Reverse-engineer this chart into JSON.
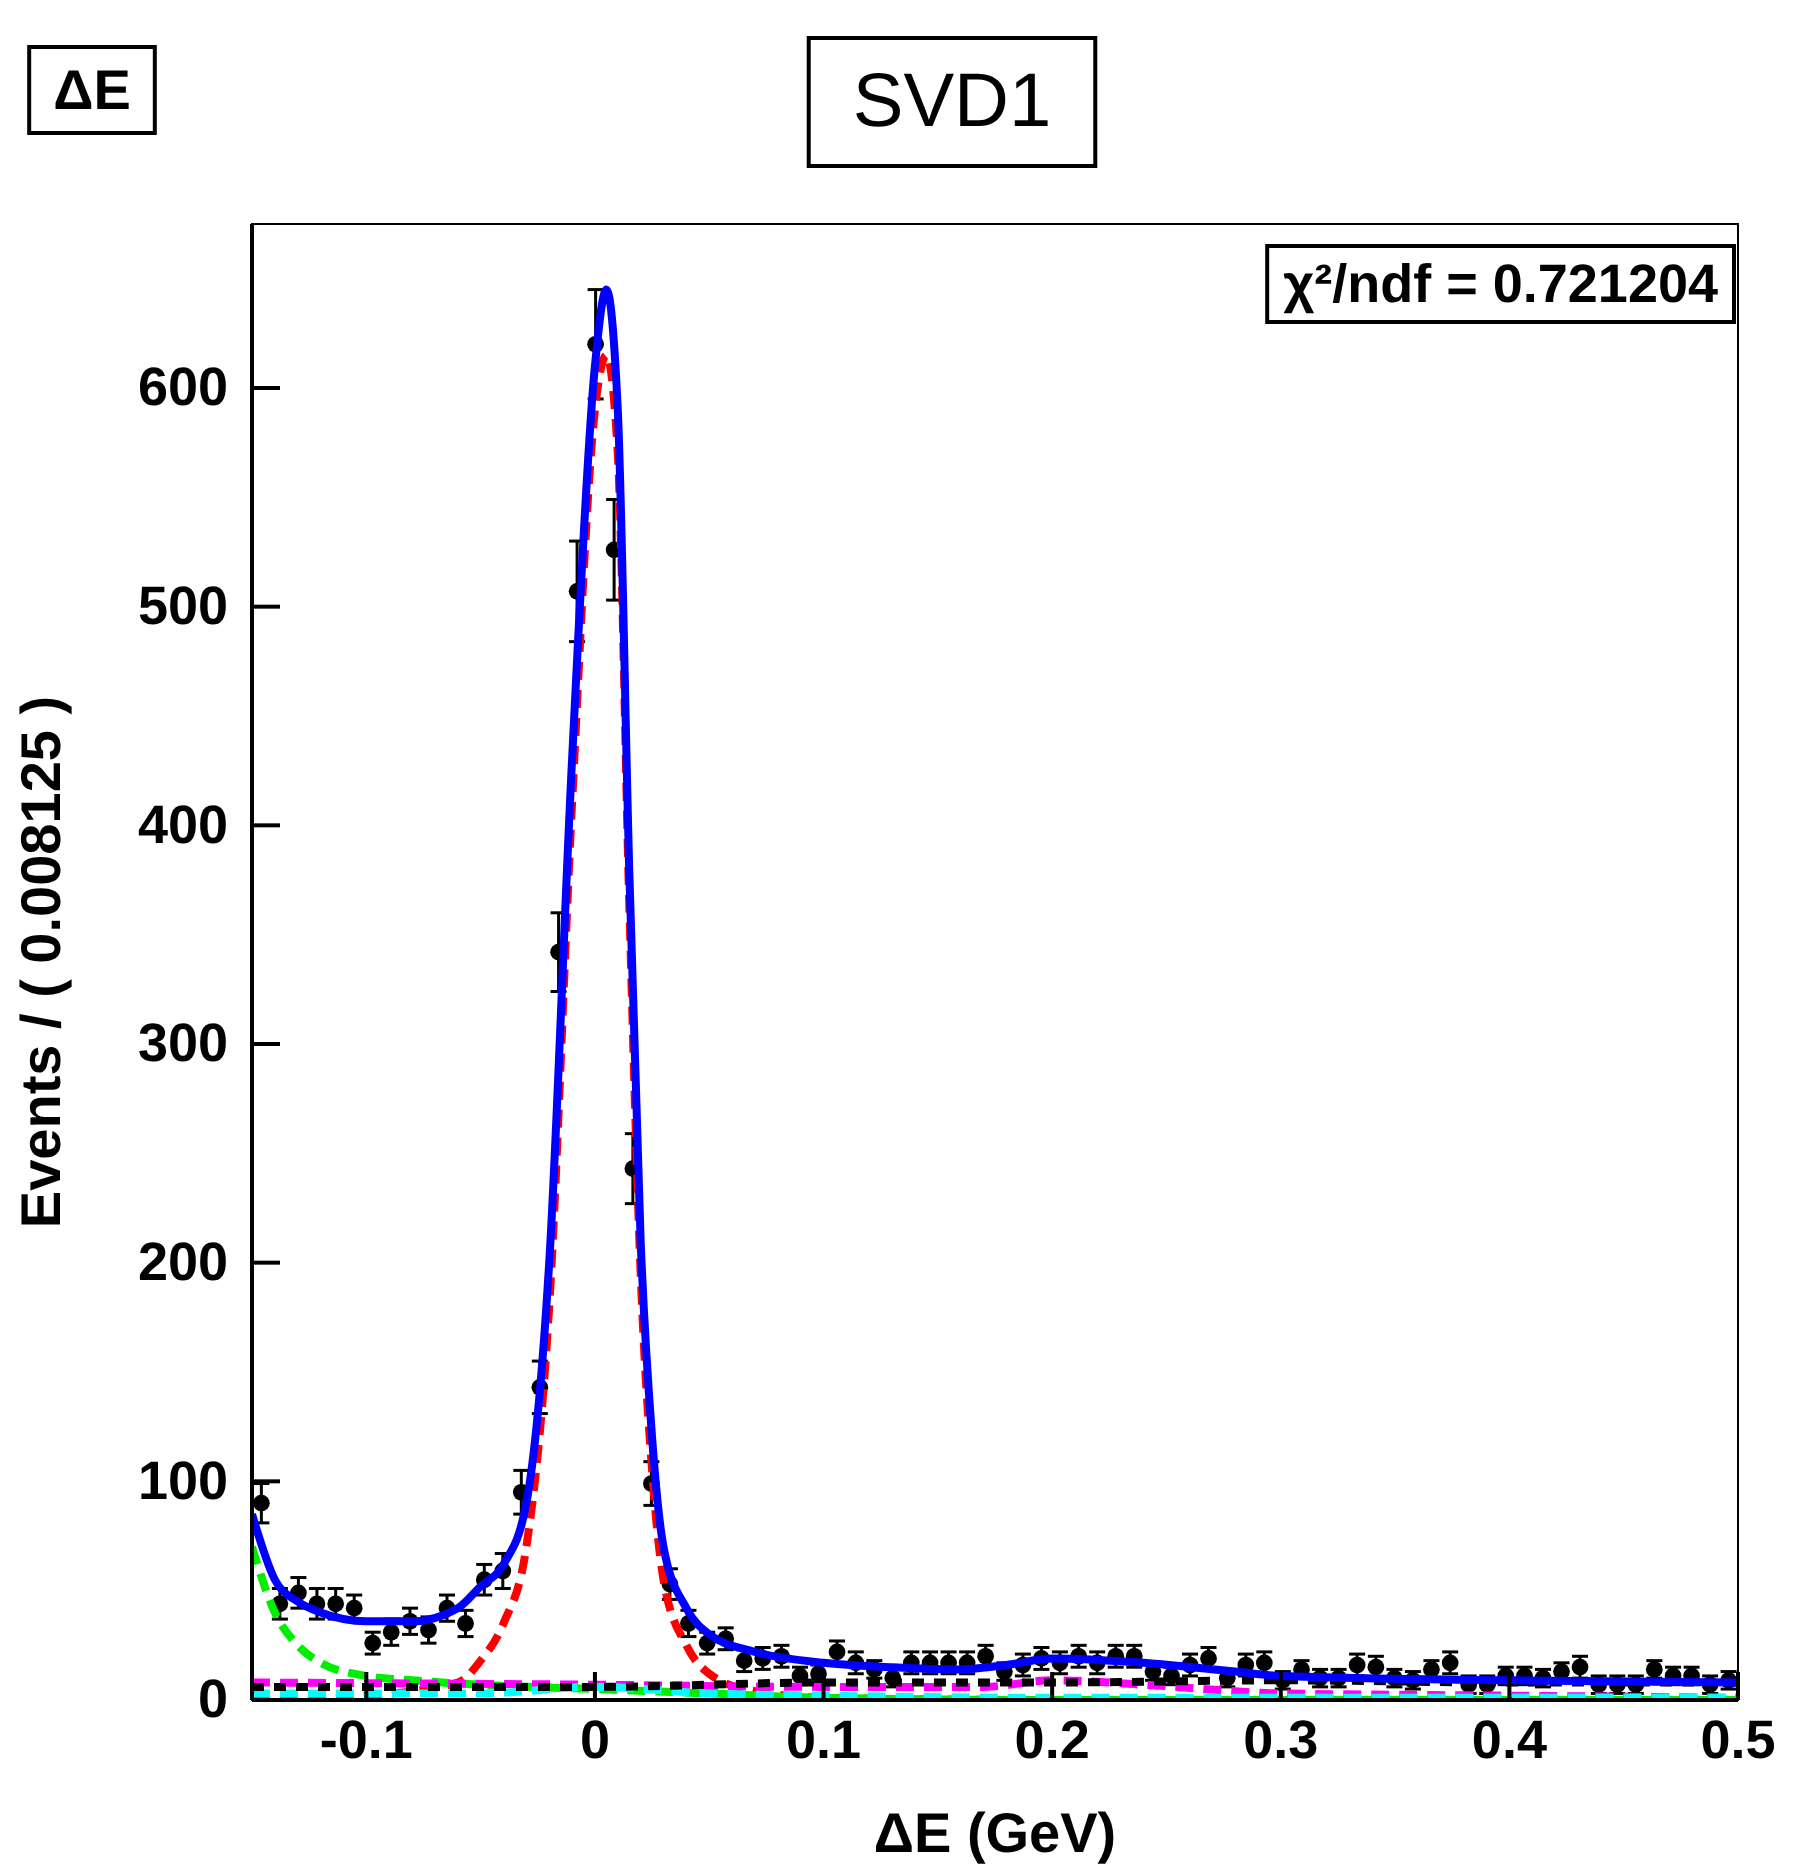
{
  "chart_data": {
    "type": "scatter",
    "title": "SVD1",
    "xlabel": "ΔE (GeV)",
    "ylabel": "Events / ( 0.008125 )",
    "annotations": [
      "ΔE",
      "χ²/ndf = 0.721204"
    ],
    "xlim": [
      -0.15,
      0.5
    ],
    "xticks": [
      -0.1,
      0,
      0.1,
      0.2,
      0.3,
      0.4,
      0.5
    ],
    "ylim": [
      0,
      675
    ],
    "yticks": [
      0,
      100,
      200,
      300,
      400,
      500,
      600
    ],
    "grid": false,
    "series": [
      {
        "marker": "circle",
        "color": "#000000",
        "x": [
          -0.1459,
          -0.1378,
          -0.1297,
          -0.1216,
          -0.1134,
          -0.1053,
          -0.0972,
          -0.0891,
          -0.0809,
          -0.0728,
          -0.0647,
          -0.0566,
          -0.0484,
          -0.0403,
          -0.0322,
          -0.0241,
          -0.0159,
          -0.0078,
          0.0003,
          0.0084,
          0.0166,
          0.0247,
          0.0328,
          0.0409,
          0.0491,
          0.0572,
          0.0653,
          0.0734,
          0.0816,
          0.0897,
          0.0978,
          0.1059,
          0.1141,
          0.1222,
          0.1303,
          0.1384,
          0.1466,
          0.1547,
          0.1628,
          0.1709,
          0.1791,
          0.1872,
          0.1953,
          0.2034,
          0.2116,
          0.2197,
          0.2278,
          0.2359,
          0.2441,
          0.2522,
          0.2603,
          0.2684,
          0.2766,
          0.2847,
          0.2928,
          0.3009,
          0.3091,
          0.3172,
          0.3253,
          0.3334,
          0.3416,
          0.3497,
          0.3578,
          0.3659,
          0.3741,
          0.3822,
          0.3903,
          0.3984,
          0.4066,
          0.4147,
          0.4228,
          0.4309,
          0.4391,
          0.4472,
          0.4553,
          0.4634,
          0.4716,
          0.4797,
          0.4878,
          0.4959
        ],
        "values": [
          90,
          44,
          49,
          44,
          44,
          42,
          26,
          31,
          36,
          32,
          42,
          35,
          55,
          59,
          95,
          143,
          342,
          507,
          620,
          526,
          243,
          99,
          53,
          35,
          26,
          28,
          18,
          19,
          20,
          11,
          12,
          22,
          17,
          14,
          10,
          17,
          17,
          17,
          17,
          20,
          13,
          16,
          19,
          17,
          20,
          17,
          20,
          20,
          13,
          11,
          16,
          19,
          10,
          16,
          17,
          9,
          14,
          10,
          10,
          16,
          15,
          10,
          9,
          14,
          17,
          7,
          7,
          11,
          11,
          10,
          13,
          15,
          7,
          7,
          7,
          14,
          11,
          11,
          7,
          9
        ],
        "errors": [
          9,
          7,
          7,
          7,
          7,
          6,
          5,
          6,
          6,
          6,
          6,
          6,
          7,
          8,
          10,
          12,
          18,
          23,
          25,
          23,
          16,
          10,
          7,
          6,
          5,
          5,
          5,
          5,
          5,
          4,
          4,
          5,
          5,
          4,
          4,
          5,
          5,
          5,
          5,
          5,
          4,
          5,
          5,
          5,
          5,
          5,
          5,
          5,
          4,
          4,
          5,
          5,
          4,
          5,
          5,
          4,
          4,
          4,
          4,
          5,
          5,
          4,
          4,
          4,
          5,
          4,
          4,
          4,
          4,
          4,
          4,
          5,
          4,
          4,
          4,
          4,
          4,
          4,
          4,
          4
        ]
      },
      {
        "type": "line",
        "color": "#ff0000",
        "line_style": "dashed",
        "x": [
          -0.15,
          -0.1,
          -0.06,
          -0.05,
          -0.04,
          -0.03,
          -0.02,
          -0.01,
          0,
          0.005,
          0.01,
          0.015,
          0.02,
          0.025,
          0.03,
          0.04,
          0.05,
          0.07,
          0.1,
          0.2,
          0.5
        ],
        "values": [
          0,
          2,
          8,
          18,
          35,
          70,
          180,
          410,
          590,
          615,
          570,
          365,
          195,
          105,
          55,
          25,
          12,
          4,
          1,
          0,
          0
        ]
      },
      {
        "type": "line",
        "color": "#00ee00",
        "line_style": "dashed",
        "x": [
          -0.15,
          -0.14,
          -0.13,
          -0.12,
          -0.1,
          -0.08,
          -0.05,
          0,
          0.05,
          0.1,
          0.2,
          0.5
        ],
        "values": [
          70,
          40,
          25,
          17,
          11,
          9,
          7,
          5,
          3,
          1,
          0,
          0
        ]
      },
      {
        "type": "line",
        "color": "#ff00ff",
        "line_style": "dashed",
        "x": [
          -0.15,
          0,
          0.1,
          0.17,
          0.2,
          0.24,
          0.3,
          0.4,
          0.5
        ],
        "values": [
          8,
          7,
          6,
          6,
          9,
          7,
          3,
          2,
          1
        ]
      },
      {
        "type": "line",
        "color": "#00ffff",
        "line_style": "dashed",
        "x": [
          -0.15,
          -0.05,
          0,
          0.05,
          0.1,
          0.2,
          0.3,
          0.5
        ],
        "values": [
          3,
          3,
          6,
          3,
          2,
          1,
          1,
          1
        ]
      },
      {
        "type": "line",
        "color": "#000000",
        "line_style": "dotted",
        "x": [
          -0.15,
          0,
          0.1,
          0.2,
          0.3,
          0.4,
          0.5
        ],
        "values": [
          6,
          6,
          8,
          8,
          9,
          8,
          8
        ]
      },
      {
        "type": "line",
        "color": "#0000ff",
        "line_style": "solid",
        "x": [
          -0.15,
          -0.14,
          -0.13,
          -0.12,
          -0.1,
          -0.08,
          -0.06,
          -0.05,
          -0.04,
          -0.03,
          -0.02,
          -0.01,
          0,
          0.005,
          0.01,
          0.015,
          0.02,
          0.025,
          0.03,
          0.04,
          0.05,
          0.07,
          0.1,
          0.13,
          0.16,
          0.18,
          0.2,
          0.24,
          0.28,
          0.3,
          0.4,
          0.5
        ],
        "values": [
          85,
          55,
          45,
          40,
          36,
          36,
          42,
          52,
          62,
          90,
          200,
          430,
          610,
          645,
          590,
          380,
          210,
          120,
          70,
          42,
          30,
          22,
          17,
          15,
          14,
          16,
          19,
          17,
          13,
          11,
          9,
          8
        ]
      }
    ]
  }
}
